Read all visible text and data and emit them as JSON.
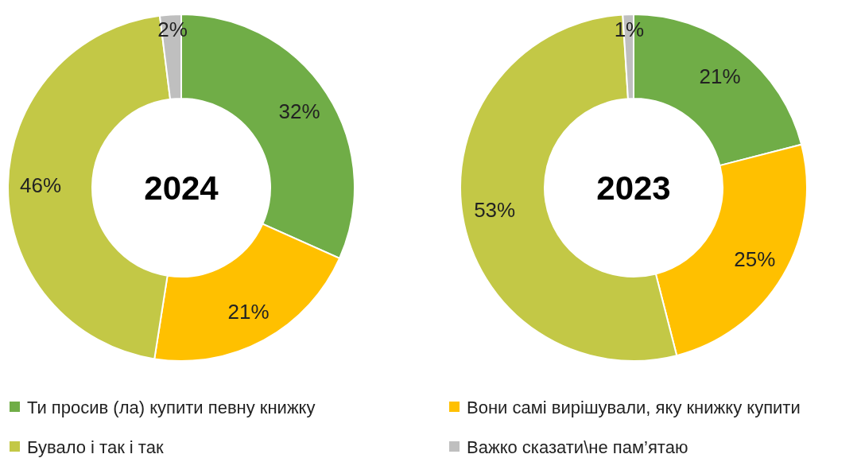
{
  "chart_data": [
    {
      "type": "donut",
      "title": "2024",
      "categories": [
        "Ти просив (ла) купити певну книжку",
        "Вони самі вирішували, яку книжку купити",
        "Бувало і так і так",
        "Важко сказати\\не пам’ятаю"
      ],
      "values": [
        32,
        21,
        46,
        2
      ],
      "colors": [
        "#70ad47",
        "#ffc000",
        "#c3c846",
        "#bfbfbf"
      ],
      "value_labels": [
        "32%",
        "21%",
        "46%",
        "2%"
      ],
      "legend": "bottom"
    },
    {
      "type": "donut",
      "title": "2023",
      "values": [
        21,
        25,
        53,
        1
      ],
      "colors": [
        "#70ad47",
        "#ffc000",
        "#c3c846",
        "#bfbfbf"
      ],
      "value_labels": [
        "21%",
        "25%",
        "53%",
        "1%"
      ]
    }
  ]
}
